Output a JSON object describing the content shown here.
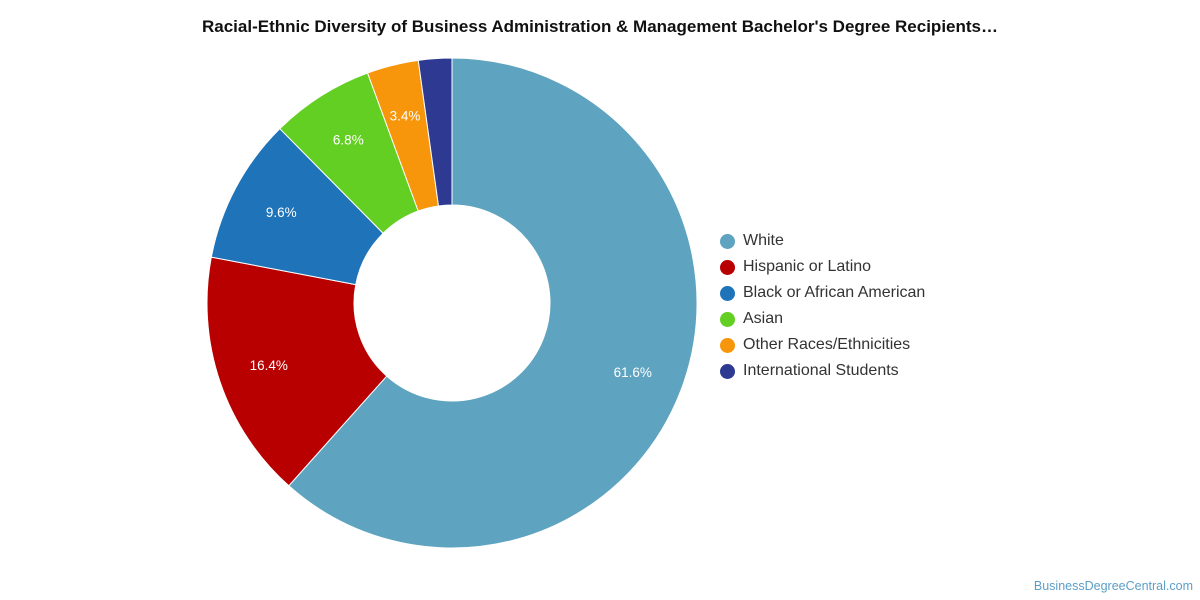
{
  "title": "Racial-Ethnic Diversity of Business Administration & Management Bachelor's Degree Recipients…",
  "source": "BusinessDegreeCentral.com",
  "chart_data": {
    "type": "pie",
    "variant": "donut",
    "legend_position": "right",
    "categories": [
      "White",
      "Hispanic or Latino",
      "Black or African American",
      "Asian",
      "Other Races/Ethnicities",
      "International Students"
    ],
    "values": [
      61.6,
      16.4,
      9.6,
      6.8,
      3.4,
      2.2
    ],
    "labels": [
      "61.6%",
      "16.4%",
      "9.6%",
      "6.8%",
      "3.4%",
      ""
    ],
    "colors": [
      "#5ea3bf",
      "#b80000",
      "#1f73b8",
      "#63cf22",
      "#f7950b",
      "#2e3a91"
    ]
  }
}
